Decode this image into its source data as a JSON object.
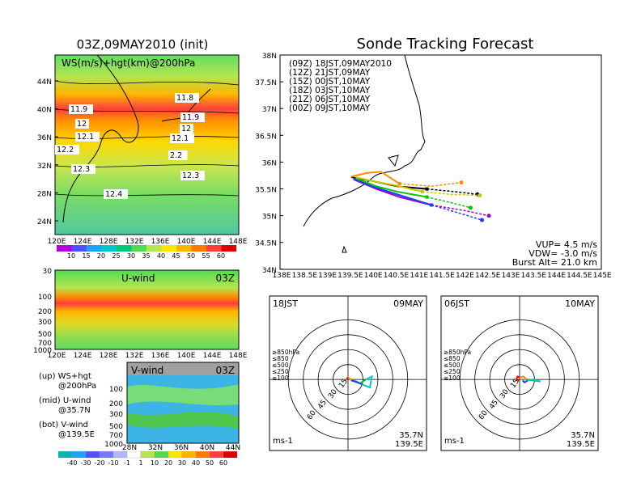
{
  "left_panel": {
    "title": "03Z,09MAY2010 (init)",
    "map": {
      "label": "WS(m/s)+hgt(km)@200hPa",
      "lat_ticks": [
        "44N",
        "40N",
        "36N",
        "32N",
        "28N",
        "24N"
      ],
      "lon_ticks": [
        "120E",
        "124E",
        "128E",
        "132E",
        "136E",
        "140E",
        "144E",
        "148E"
      ],
      "contour_labels": [
        "11.9",
        "11.8",
        "11.9",
        "12",
        "12",
        "12.1",
        "12.1",
        "12.2",
        "2.2",
        "12.3",
        "12.3",
        "12.4"
      ],
      "colorbar_ticks": [
        "10",
        "15",
        "20",
        "25",
        "30",
        "35",
        "40",
        "45",
        "50",
        "55",
        "60"
      ]
    },
    "u_panel": {
      "title": "U-wind",
      "time": "03Z",
      "p_ticks": [
        "30",
        "100",
        "200",
        "300",
        "500",
        "700",
        "1000"
      ],
      "lon_ticks": [
        "120E",
        "124E",
        "128E",
        "132E",
        "136E",
        "140E",
        "144E",
        "148E"
      ]
    },
    "v_panel": {
      "title": "V-wind",
      "time": "03Z",
      "p_ticks": [
        "100",
        "200",
        "300",
        "500",
        "700",
        "1000"
      ],
      "lat_ticks": [
        "28N",
        "32N",
        "36N",
        "40N",
        "44N"
      ]
    },
    "legend_notes": [
      {
        "a": "(up) WS+hgt",
        "b": "@200hPa"
      },
      {
        "a": "(mid) U-wind",
        "b": "@35.7N"
      },
      {
        "a": "(bot) V-wind",
        "b": "@139.5E"
      }
    ],
    "colorbar2_ticks": [
      "-40",
      "-30",
      "-20",
      "-10",
      "-1",
      "1",
      "10",
      "20",
      "30",
      "40",
      "50",
      "60"
    ]
  },
  "right_panel": {
    "title": "Sonde Tracking Forecast",
    "note_vup": "VUP= 4.5 m/s",
    "note_vdw": "VDW= -3.0 m/s",
    "note_burst": "Burst Alt= 21.0 km",
    "lat_ticks": [
      "38N",
      "37.5N",
      "37N",
      "36.5N",
      "36N",
      "35.5N",
      "35N",
      "34.5N",
      "34N"
    ],
    "lon_ticks": [
      "138E",
      "138.5E",
      "139E",
      "139.5E",
      "140E",
      "140.5E",
      "141E",
      "141.5E",
      "142E",
      "142.5E",
      "143E",
      "143.5E",
      "144E",
      "144.5E",
      "145E"
    ]
  },
  "colors": {
    "t09Z": "#000000",
    "t12Z": "#a000c8",
    "t15Z": "#1e3cff",
    "t18Z": "#00c800",
    "t21Z": "#c8c800",
    "t00Z": "#ff8c00"
  },
  "chart_data": [
    {
      "type": "line",
      "title": "Sonde Tracking Forecast",
      "xlabel": "",
      "ylabel": "",
      "xlim": [
        138,
        145
      ],
      "ylim": [
        34,
        38
      ],
      "series": [
        {
          "name": "(09Z) 18JST,09MAY2010",
          "color": "#000000",
          "x": [
            139.55,
            140.0,
            140.55,
            141.2,
            141.8,
            142.3
          ],
          "y": [
            35.72,
            35.65,
            35.55,
            35.5,
            35.45,
            35.4
          ]
        },
        {
          "name": "(12Z) 21JST,09MAY",
          "color": "#a000c8",
          "x": [
            139.6,
            140.1,
            140.6,
            141.3,
            142.0,
            142.55
          ],
          "y": [
            35.68,
            35.5,
            35.35,
            35.2,
            35.1,
            35.0
          ]
        },
        {
          "name": "(15Z) 00JST,10MAY",
          "color": "#1e3cff",
          "x": [
            139.6,
            140.0,
            140.55,
            141.3,
            141.9,
            142.4
          ],
          "y": [
            35.7,
            35.55,
            35.4,
            35.2,
            35.05,
            34.92
          ]
        },
        {
          "name": "(18Z) 03JST,10MAY",
          "color": "#00c800",
          "x": [
            139.65,
            140.1,
            140.55,
            141.2,
            141.7,
            142.15
          ],
          "y": [
            35.7,
            35.55,
            35.45,
            35.35,
            35.25,
            35.15
          ]
        },
        {
          "name": "(21Z) 06JST,10MAY",
          "color": "#c8c800",
          "x": [
            139.65,
            140.0,
            140.5,
            141.1,
            141.7,
            142.35
          ],
          "y": [
            35.72,
            35.65,
            35.57,
            35.45,
            35.4,
            35.38
          ]
        },
        {
          "name": "(00Z) 09JST,10MAY",
          "color": "#ff8c00",
          "x": [
            139.55,
            139.9,
            140.2,
            140.6,
            141.3,
            141.95
          ],
          "y": [
            35.73,
            35.8,
            35.82,
            35.6,
            35.55,
            35.62
          ]
        }
      ]
    },
    {
      "type": "line",
      "title": "18JST 09MAY",
      "location": "35.7N 139.5E",
      "units": "ms-1",
      "ring_labels": [
        "15",
        "30",
        "45",
        "60"
      ],
      "levels": [
        "≥850hPa",
        "≤850",
        "≤500",
        "≤250",
        "≤100"
      ],
      "level_colors": [
        "#ff0000",
        "#ff8c00",
        "#00c800",
        "#00c8c8",
        "#1e3cff"
      ],
      "series": [
        {
          "name": "≥850hPa",
          "u": [
            0,
            -1,
            0
          ],
          "v": [
            0,
            1,
            2
          ]
        },
        {
          "name": "≤850",
          "u": [
            0,
            3,
            6
          ],
          "v": [
            2,
            0,
            -2
          ]
        },
        {
          "name": "≤500",
          "u": [
            6,
            12,
            18
          ],
          "v": [
            -2,
            -4,
            0
          ]
        },
        {
          "name": "≤250",
          "u": [
            18,
            24,
            22,
            14
          ],
          "v": [
            0,
            3,
            -8,
            -5
          ]
        },
        {
          "name": "≤100",
          "u": [
            14,
            8,
            3
          ],
          "v": [
            -5,
            -2,
            -1
          ]
        }
      ]
    },
    {
      "type": "line",
      "title": "06JST 10MAY",
      "location": "35.7N 139.5E",
      "units": "ms-1",
      "ring_labels": [
        "15",
        "30",
        "45",
        "60"
      ],
      "levels": [
        "≥850hPa",
        "≤850",
        "≤500",
        "≤250",
        "≤100"
      ],
      "level_colors": [
        "#ff0000",
        "#ff8c00",
        "#00c800",
        "#00c8c8",
        "#1e3cff"
      ],
      "series": [
        {
          "name": "≥850hPa",
          "u": [
            -1,
            -3,
            -2,
            0
          ],
          "v": [
            -2,
            1,
            3,
            2
          ]
        },
        {
          "name": "≤850",
          "u": [
            0,
            4,
            7
          ],
          "v": [
            2,
            3,
            0
          ]
        },
        {
          "name": "≤500",
          "u": [
            7,
            14,
            21
          ],
          "v": [
            0,
            -1,
            -2
          ]
        },
        {
          "name": "≤250",
          "u": [
            21,
            14,
            8
          ],
          "v": [
            -2,
            0,
            -1
          ]
        },
        {
          "name": "≤100",
          "u": [
            8,
            5,
            3
          ],
          "v": [
            -1,
            -3,
            -1
          ]
        }
      ]
    }
  ]
}
